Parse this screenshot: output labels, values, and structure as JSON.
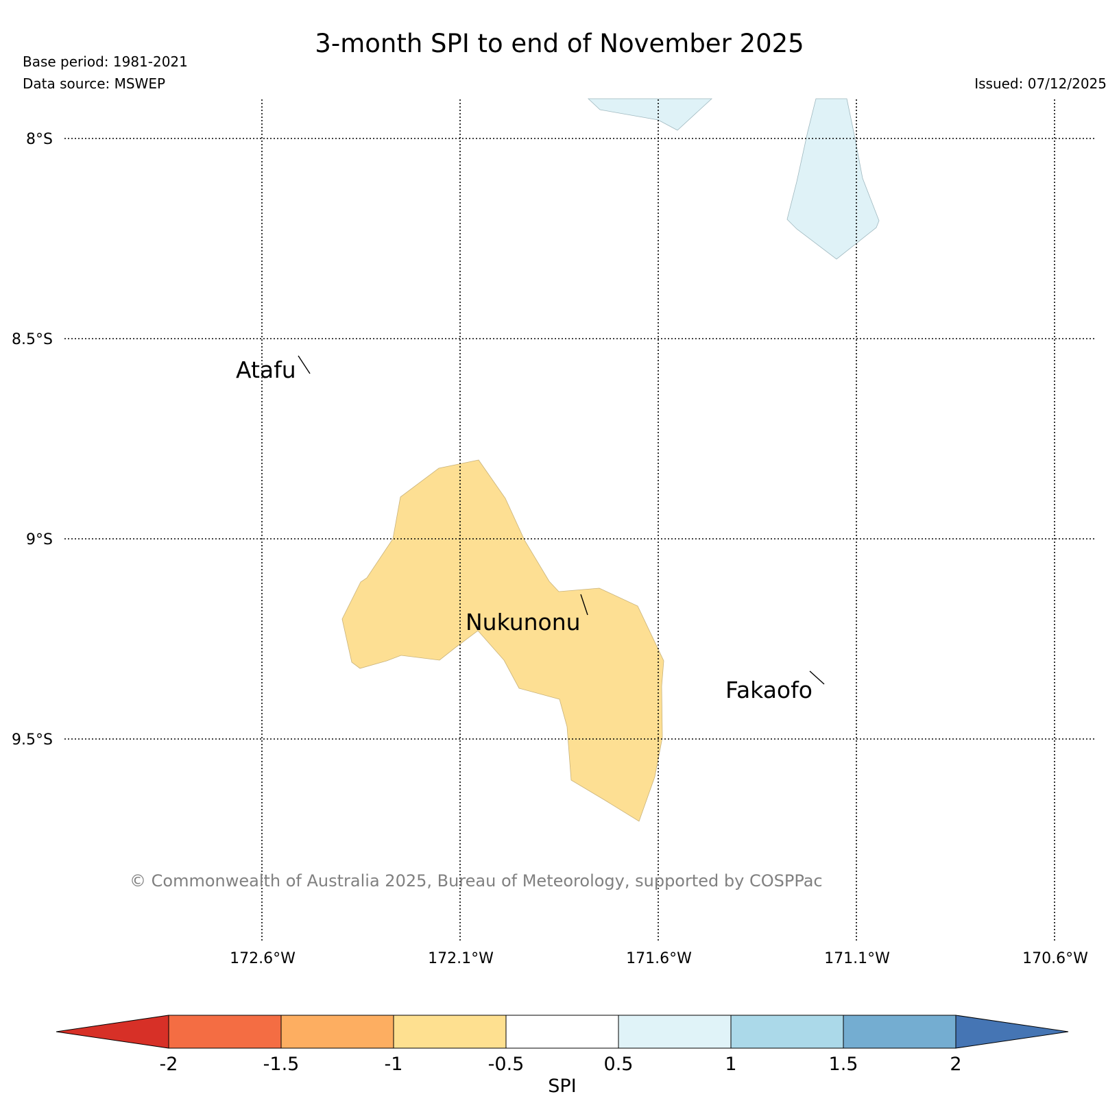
{
  "header": {
    "title": "3-month SPI to end of November 2025",
    "base_period": "Base period: 1981-2021",
    "data_source": "Data source: MSWEP",
    "issued": "Issued: 07/12/2025"
  },
  "map": {
    "lat_labels": [
      "8°S",
      "8.5°S",
      "9°S",
      "9.5°S"
    ],
    "lon_labels": [
      "172.6°W",
      "172.1°W",
      "171.6°W",
      "171.1°W",
      "170.6°W"
    ],
    "places": [
      "Atafu",
      "Nukunonu",
      "Fakaofo"
    ],
    "copyright": "© Commonwealth of Australia 2025, Bureau of Meteorology, supported by COSPPac",
    "colors": {
      "dry_-1_-0.5": "#fddf93",
      "wet_0.5_1": "#dff2f7"
    }
  },
  "colorbar": {
    "title": "SPI",
    "ticks": [
      "-2",
      "-1.5",
      "-1",
      "-0.5",
      "0.5",
      "1",
      "1.5",
      "2"
    ],
    "colors": [
      "#d73027",
      "#f46d43",
      "#fdae61",
      "#fee090",
      "#ffffff",
      "#e0f3f8",
      "#abd9e9",
      "#74add1",
      "#4575b4"
    ]
  }
}
